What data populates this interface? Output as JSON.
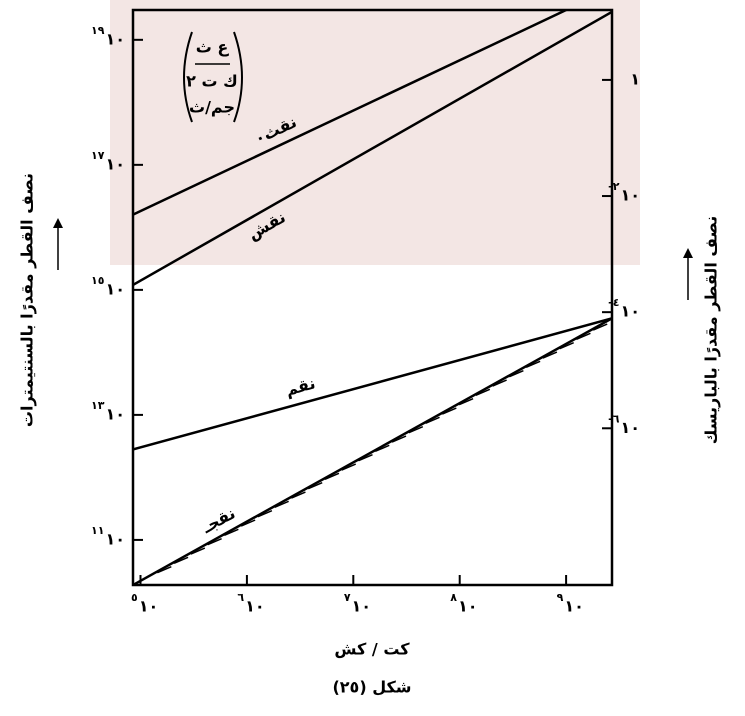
{
  "chart_data": {
    "type": "line",
    "x_label": "كت / كش",
    "y_label": "نصف القطر مقدرًا بالسنتيمترات",
    "y2_label": "نصف القطر مقدرًا بالباريسك",
    "caption": "شكل (٢٥)",
    "annotation": [
      "ع ث",
      "ك ت ٢",
      "جم/ث"
    ],
    "log_x": true,
    "log_y": true,
    "log_y2": true,
    "xlim": [
      85000,
      2700000000
    ],
    "ylim": [
      19000000000,
      30000000000000000000
    ],
    "y2lim": [
      2e-09,
      16
    ],
    "xticks": [
      {
        "value": 100000,
        "label": "١٠",
        "exp": "٥"
      },
      {
        "value": 1000000,
        "label": "١٠",
        "exp": "٦"
      },
      {
        "value": 10000000,
        "label": "١٠",
        "exp": "٧"
      },
      {
        "value": 100000000,
        "label": "١٠",
        "exp": "٨"
      },
      {
        "value": 1000000000,
        "label": "١٠",
        "exp": "٩"
      }
    ],
    "yticks": [
      {
        "value": 100000000000,
        "label": "١٠",
        "exp": "١١"
      },
      {
        "value": 10000000000000,
        "label": "١٠",
        "exp": "١٣"
      },
      {
        "value": 1000000000000000,
        "label": "١٠",
        "exp": "١٥"
      },
      {
        "value": 100000000000000000,
        "label": "١٠",
        "exp": "١٧"
      },
      {
        "value": 10000000000000000000,
        "label": "١٠",
        "exp": "١٩"
      }
    ],
    "y2ticks": [
      {
        "value": 1,
        "label": "١"
      },
      {
        "value": 0.01,
        "label": "١٠",
        "exp": "-٢"
      },
      {
        "value": 0.0001,
        "label": "١٠",
        "exp": "-٤"
      },
      {
        "value": 1e-06,
        "label": "١٠",
        "exp": "-٦"
      }
    ],
    "series": [
      {
        "name": "نقث٠",
        "color": "#000000",
        "x": [
          85000,
          1000000000
        ],
        "values": [
          16000000000000000,
          30000000000000000000
        ]
      },
      {
        "name": "نقش",
        "color": "#000000",
        "x": [
          85000,
          2700000000
        ],
        "values": [
          1200000000000000,
          28000000000000000000
        ]
      },
      {
        "name": "نقم",
        "color": "#000000",
        "x": [
          85000,
          2700000000
        ],
        "values": [
          2800000000000,
          350000000000000
        ]
      },
      {
        "name": "نقجـ",
        "color": "#000000",
        "x": [
          85000,
          2700000000
        ],
        "values": [
          19000000000,
          350000000000000
        ],
        "hatched": true
      }
    ]
  }
}
